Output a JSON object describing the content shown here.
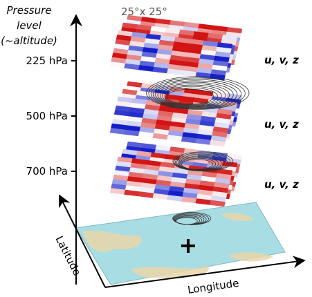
{
  "axis_title": [
    "Pressure",
    "level",
    "(~altitude)"
  ],
  "grid_size": "25°x 25°",
  "levels": [
    {
      "label": "225 hPa",
      "variables": "u, v, z"
    },
    {
      "label": "500 hPa",
      "variables": "u, v, z"
    },
    {
      "label": "700 hPa",
      "variables": "u, v, z"
    }
  ],
  "latitude_label": "Latitude",
  "longitude_label": "Longitude"
}
